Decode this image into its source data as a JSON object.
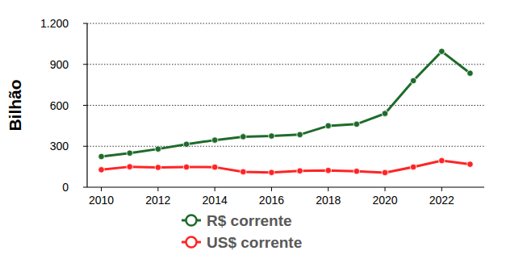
{
  "chart_data": {
    "type": "line",
    "y_label": "Bilhão",
    "x": [
      2010,
      2011,
      2012,
      2013,
      2014,
      2015,
      2016,
      2017,
      2018,
      2019,
      2020,
      2021,
      2022,
      2023
    ],
    "series": [
      {
        "name": "R$ corrente",
        "color": "#1e6b2a",
        "marker": "circle",
        "line_style": "solid",
        "values": [
          225,
          250,
          280,
          315,
          345,
          370,
          375,
          385,
          450,
          462,
          540,
          780,
          995,
          835
        ]
      },
      {
        "name": "US$ corrente",
        "color": "#ff2424",
        "marker": "circle",
        "line_style": "solid",
        "values": [
          128,
          150,
          145,
          148,
          147,
          113,
          108,
          120,
          123,
          117,
          107,
          148,
          195,
          168
        ]
      }
    ],
    "xlim": [
      2009.5,
      2023.5
    ],
    "xticks": [
      2010,
      2012,
      2014,
      2016,
      2018,
      2020,
      2022
    ],
    "ylim": [
      0,
      1200
    ],
    "yticks": [
      0,
      300,
      600,
      900,
      {
        "value": 1200,
        "label": "1.200"
      }
    ],
    "grid": true,
    "legend": "bottom"
  }
}
